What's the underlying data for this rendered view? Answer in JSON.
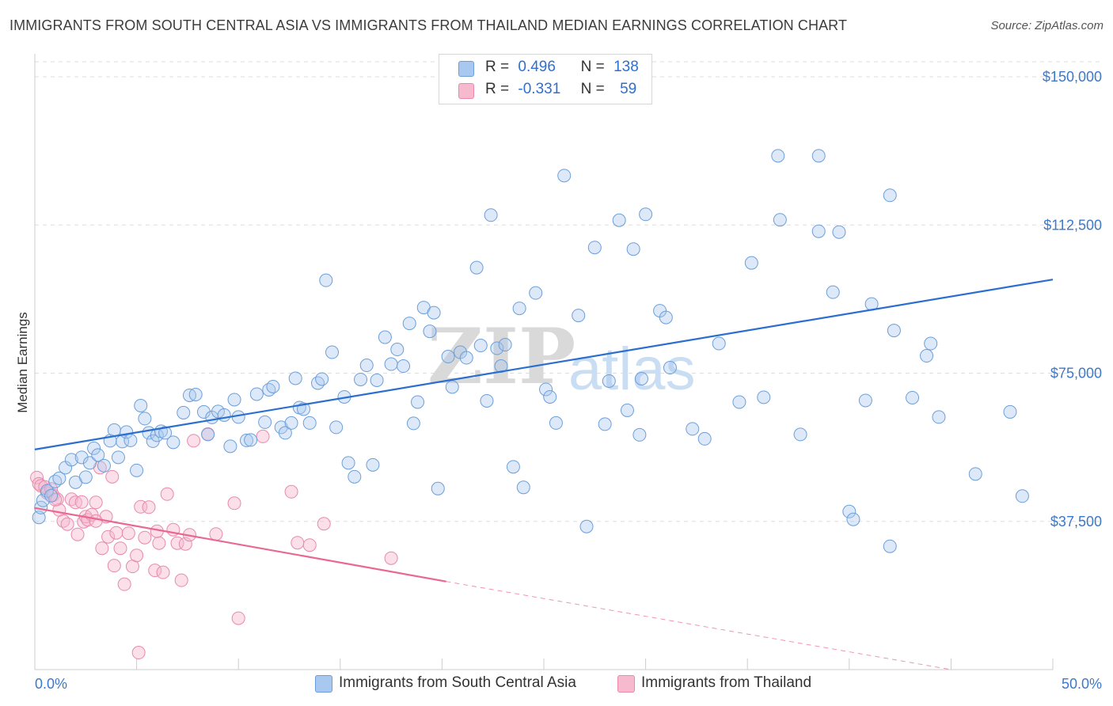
{
  "title": "IMMIGRANTS FROM SOUTH CENTRAL ASIA VS IMMIGRANTS FROM THAILAND MEDIAN EARNINGS CORRELATION CHART",
  "source": "Source: ZipAtlas.com",
  "watermark": {
    "zip": "ZIP",
    "atlas": "atlas"
  },
  "legend": {
    "rows": [
      {
        "r_label": "R =",
        "r_value": "0.496",
        "n_label": "N =",
        "n_value": "138"
      },
      {
        "r_label": "R =",
        "r_value": "-0.331",
        "n_label": "N =",
        "n_value": "59"
      }
    ]
  },
  "bottom_legend": {
    "series1": "Immigrants from South Central Asia",
    "series2": "Immigrants from Thailand"
  },
  "colors": {
    "blue_fill": "#a9c8ef",
    "blue_stroke": "#6b9fd9",
    "blue_line": "#2a6fcf",
    "pink_fill": "#f6b9ce",
    "pink_stroke": "#e88aab",
    "pink_line": "#e8688f",
    "grid": "#dddddd",
    "tick_text": "#3d78c9"
  },
  "chart_data": {
    "type": "scatter",
    "xlabel": "",
    "ylabel": "Median Earnings",
    "xlim": [
      0,
      50
    ],
    "ylim": [
      0,
      150000
    ],
    "x_tick_labels": [
      "0.0%",
      "50.0%"
    ],
    "y_ticks": [
      37500,
      75000,
      112500,
      150000
    ],
    "y_tick_labels": [
      "$37,500",
      "$75,000",
      "$112,500",
      "$150,000"
    ],
    "grid": true,
    "series": [
      {
        "name": "Immigrants from South Central Asia",
        "color": "#6b9fd9",
        "r": 0.496,
        "n": 138,
        "trend": {
          "x": [
            0,
            50
          ],
          "y": [
            55700,
            98700
          ],
          "style": "solid"
        },
        "points": [
          [
            0.2,
            38500
          ],
          [
            0.3,
            41000
          ],
          [
            0.4,
            42800
          ],
          [
            0.6,
            45200
          ],
          [
            0.8,
            44000
          ],
          [
            1.0,
            47600
          ],
          [
            1.2,
            48400
          ],
          [
            1.5,
            51100
          ],
          [
            1.8,
            53100
          ],
          [
            2.0,
            47400
          ],
          [
            2.3,
            53700
          ],
          [
            2.5,
            48700
          ],
          [
            2.7,
            52300
          ],
          [
            2.9,
            56000
          ],
          [
            3.1,
            54300
          ],
          [
            3.4,
            51600
          ],
          [
            3.7,
            57900
          ],
          [
            3.9,
            60600
          ],
          [
            4.1,
            53700
          ],
          [
            4.3,
            57700
          ],
          [
            4.5,
            60100
          ],
          [
            4.7,
            58000
          ],
          [
            5.0,
            50400
          ],
          [
            5.2,
            66800
          ],
          [
            5.4,
            63500
          ],
          [
            5.6,
            59900
          ],
          [
            5.8,
            57800
          ],
          [
            6.0,
            59300
          ],
          [
            6.2,
            60300
          ],
          [
            6.4,
            59900
          ],
          [
            6.8,
            57500
          ],
          [
            7.3,
            65000
          ],
          [
            7.6,
            69400
          ],
          [
            7.9,
            69600
          ],
          [
            8.3,
            65200
          ],
          [
            8.5,
            59500
          ],
          [
            8.7,
            63800
          ],
          [
            9.0,
            65300
          ],
          [
            9.3,
            64400
          ],
          [
            9.6,
            56500
          ],
          [
            9.8,
            68300
          ],
          [
            10.0,
            63900
          ],
          [
            10.4,
            58000
          ],
          [
            10.6,
            58100
          ],
          [
            10.9,
            69700
          ],
          [
            11.3,
            62600
          ],
          [
            11.5,
            70800
          ],
          [
            11.7,
            71600
          ],
          [
            12.1,
            61300
          ],
          [
            12.3,
            59900
          ],
          [
            12.6,
            62400
          ],
          [
            12.8,
            73700
          ],
          [
            13.0,
            66300
          ],
          [
            13.2,
            65900
          ],
          [
            13.5,
            62400
          ],
          [
            13.9,
            72500
          ],
          [
            14.1,
            73500
          ],
          [
            14.3,
            98500
          ],
          [
            14.6,
            80300
          ],
          [
            14.8,
            61300
          ],
          [
            15.2,
            69000
          ],
          [
            15.4,
            52300
          ],
          [
            15.7,
            48800
          ],
          [
            16.0,
            73400
          ],
          [
            16.3,
            77000
          ],
          [
            16.6,
            51800
          ],
          [
            16.8,
            73200
          ],
          [
            17.2,
            84100
          ],
          [
            17.5,
            77300
          ],
          [
            17.8,
            81000
          ],
          [
            18.1,
            76800
          ],
          [
            18.4,
            87600
          ],
          [
            18.6,
            62300
          ],
          [
            18.8,
            67700
          ],
          [
            19.1,
            91600
          ],
          [
            19.4,
            85600
          ],
          [
            19.6,
            90300
          ],
          [
            19.8,
            45800
          ],
          [
            20.3,
            79200
          ],
          [
            20.5,
            71500
          ],
          [
            20.9,
            80300
          ],
          [
            21.2,
            78900
          ],
          [
            21.7,
            101700
          ],
          [
            21.9,
            82000
          ],
          [
            22.2,
            68000
          ],
          [
            22.4,
            115000
          ],
          [
            22.7,
            81300
          ],
          [
            22.9,
            76800
          ],
          [
            23.1,
            82200
          ],
          [
            23.5,
            51300
          ],
          [
            23.8,
            91400
          ],
          [
            24.0,
            46100
          ],
          [
            24.6,
            95300
          ],
          [
            25.1,
            70900
          ],
          [
            25.3,
            69000
          ],
          [
            25.6,
            62400
          ],
          [
            26.0,
            125000
          ],
          [
            26.7,
            89600
          ],
          [
            27.1,
            36200
          ],
          [
            27.5,
            106800
          ],
          [
            28.0,
            62100
          ],
          [
            28.2,
            73000
          ],
          [
            28.7,
            113700
          ],
          [
            29.1,
            65600
          ],
          [
            29.4,
            106400
          ],
          [
            29.7,
            59400
          ],
          [
            29.8,
            73600
          ],
          [
            30.0,
            115200
          ],
          [
            30.7,
            90800
          ],
          [
            31.0,
            89100
          ],
          [
            31.2,
            76400
          ],
          [
            32.3,
            60900
          ],
          [
            32.9,
            58400
          ],
          [
            33.6,
            82500
          ],
          [
            34.6,
            67700
          ],
          [
            35.2,
            102900
          ],
          [
            35.8,
            68900
          ],
          [
            36.6,
            113800
          ],
          [
            37.6,
            59500
          ],
          [
            38.5,
            110900
          ],
          [
            39.2,
            95500
          ],
          [
            39.5,
            110700
          ],
          [
            40.0,
            40000
          ],
          [
            40.2,
            38000
          ],
          [
            40.8,
            68100
          ],
          [
            41.1,
            92500
          ],
          [
            42.0,
            31200
          ],
          [
            42.2,
            85800
          ],
          [
            43.1,
            68800
          ],
          [
            43.8,
            79400
          ],
          [
            44.0,
            82500
          ],
          [
            44.4,
            63900
          ],
          [
            46.2,
            49500
          ],
          [
            47.9,
            65200
          ],
          [
            48.5,
            43900
          ],
          [
            42.0,
            120000
          ],
          [
            36.5,
            130000
          ],
          [
            38.5,
            130000
          ]
        ]
      },
      {
        "name": "Immigrants from Thailand",
        "color": "#e88aab",
        "r": -0.331,
        "n": 59,
        "trend": {
          "x": [
            0,
            20.2
          ],
          "y": [
            40900,
            22300
          ],
          "style": "solid",
          "dashed_to": [
            45,
            0
          ]
        },
        "points": [
          [
            0.1,
            48600
          ],
          [
            0.2,
            47000
          ],
          [
            0.3,
            46500
          ],
          [
            0.5,
            46200
          ],
          [
            0.6,
            44700
          ],
          [
            0.8,
            45700
          ],
          [
            0.9,
            44100
          ],
          [
            1.1,
            43100
          ],
          [
            1.2,
            40400
          ],
          [
            1.4,
            37600
          ],
          [
            1.6,
            36800
          ],
          [
            1.8,
            43100
          ],
          [
            2.0,
            42300
          ],
          [
            2.1,
            34200
          ],
          [
            2.3,
            42400
          ],
          [
            2.4,
            37400
          ],
          [
            2.5,
            38700
          ],
          [
            2.6,
            37900
          ],
          [
            2.8,
            39200
          ],
          [
            3.0,
            42300
          ],
          [
            3.2,
            51100
          ],
          [
            3.3,
            30700
          ],
          [
            3.5,
            38700
          ],
          [
            3.6,
            33600
          ],
          [
            3.8,
            48800
          ],
          [
            3.9,
            26300
          ],
          [
            4.0,
            34600
          ],
          [
            4.2,
            30700
          ],
          [
            4.4,
            21600
          ],
          [
            4.6,
            34500
          ],
          [
            4.8,
            26100
          ],
          [
            5.0,
            28900
          ],
          [
            5.1,
            4300
          ],
          [
            5.2,
            41200
          ],
          [
            5.4,
            33400
          ],
          [
            5.6,
            41100
          ],
          [
            5.9,
            25100
          ],
          [
            6.1,
            32000
          ],
          [
            6.3,
            24600
          ],
          [
            6.5,
            44400
          ],
          [
            6.8,
            35400
          ],
          [
            7.0,
            32000
          ],
          [
            7.2,
            22600
          ],
          [
            7.4,
            31800
          ],
          [
            7.6,
            34100
          ],
          [
            7.8,
            57900
          ],
          [
            8.5,
            59600
          ],
          [
            8.9,
            34300
          ],
          [
            10.0,
            13000
          ],
          [
            9.8,
            42100
          ],
          [
            11.2,
            59000
          ],
          [
            12.6,
            45000
          ],
          [
            12.9,
            32100
          ],
          [
            13.5,
            31500
          ],
          [
            14.2,
            36900
          ],
          [
            17.5,
            28200
          ],
          [
            6.0,
            35000
          ],
          [
            3.0,
            37600
          ],
          [
            1.0,
            43000
          ]
        ]
      }
    ]
  }
}
